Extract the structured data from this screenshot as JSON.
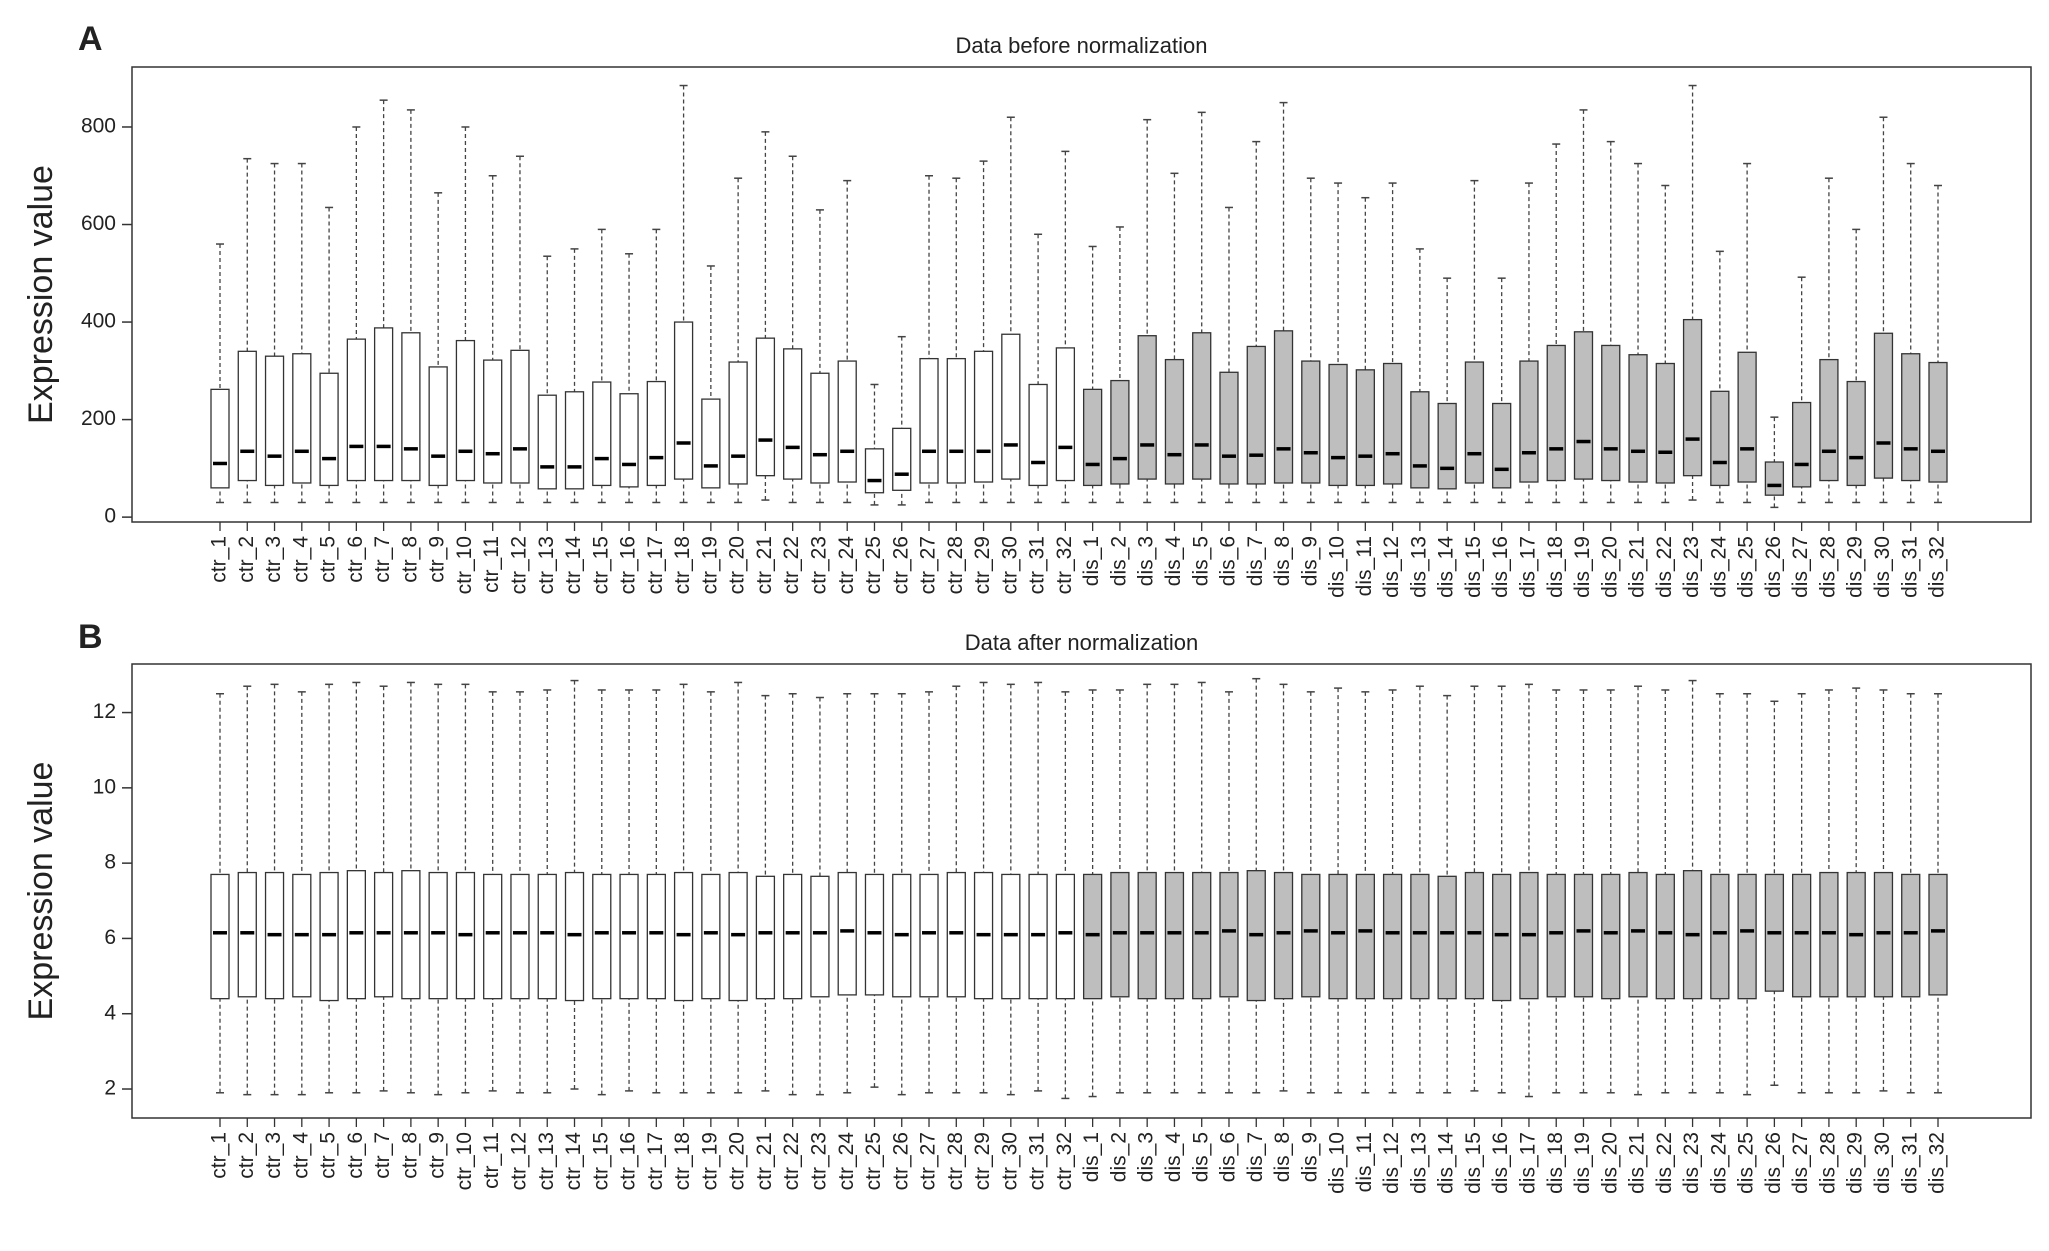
{
  "chart_data": [
    {
      "type": "box",
      "panel_label": "A",
      "title": "Data before normalization",
      "y_label": "Expression value",
      "ylim": [
        -10,
        923
      ],
      "yticks": [
        0,
        200,
        400,
        600,
        800
      ],
      "categories": [
        "ctr_1",
        "ctr_2",
        "ctr_3",
        "ctr_4",
        "ctr_5",
        "ctr_6",
        "ctr_7",
        "ctr_8",
        "ctr_9",
        "ctr_10",
        "ctr_11",
        "ctr_12",
        "ctr_13",
        "ctr_14",
        "ctr_15",
        "ctr_16",
        "ctr_17",
        "ctr_18",
        "ctr_19",
        "ctr_20",
        "ctr_21",
        "ctr_22",
        "ctr_23",
        "ctr_24",
        "ctr_25",
        "ctr_26",
        "ctr_27",
        "ctr_28",
        "ctr_29",
        "ctr_30",
        "ctr_31",
        "ctr_32",
        "dis_1",
        "dis_2",
        "dis_3",
        "dis_4",
        "dis_5",
        "dis_6",
        "dis_7",
        "dis_8",
        "dis_9",
        "dis_10",
        "dis_11",
        "dis_12",
        "dis_13",
        "dis_14",
        "dis_15",
        "dis_16",
        "dis_17",
        "dis_18",
        "dis_19",
        "dis_20",
        "dis_21",
        "dis_22",
        "dis_23",
        "dis_24",
        "dis_25",
        "dis_26",
        "dis_27",
        "dis_28",
        "dis_29",
        "dis_30",
        "dis_31",
        "dis_32"
      ],
      "box_colors": [
        "#ffffff",
        "#ffffff",
        "#ffffff",
        "#ffffff",
        "#ffffff",
        "#ffffff",
        "#ffffff",
        "#ffffff",
        "#ffffff",
        "#ffffff",
        "#ffffff",
        "#ffffff",
        "#ffffff",
        "#ffffff",
        "#ffffff",
        "#ffffff",
        "#ffffff",
        "#ffffff",
        "#ffffff",
        "#ffffff",
        "#ffffff",
        "#ffffff",
        "#ffffff",
        "#ffffff",
        "#ffffff",
        "#ffffff",
        "#ffffff",
        "#ffffff",
        "#ffffff",
        "#ffffff",
        "#ffffff",
        "#ffffff",
        "#bebebe",
        "#bebebe",
        "#bebebe",
        "#bebebe",
        "#bebebe",
        "#bebebe",
        "#bebebe",
        "#bebebe",
        "#bebebe",
        "#bebebe",
        "#bebebe",
        "#bebebe",
        "#bebebe",
        "#bebebe",
        "#bebebe",
        "#bebebe",
        "#bebebe",
        "#bebebe",
        "#bebebe",
        "#bebebe",
        "#bebebe",
        "#bebebe",
        "#bebebe",
        "#bebebe",
        "#bebebe",
        "#bebebe",
        "#bebebe",
        "#bebebe",
        "#bebebe",
        "#bebebe",
        "#bebebe",
        "#bebebe"
      ],
      "low": [
        30,
        30,
        30,
        30,
        30,
        30,
        30,
        30,
        30,
        30,
        30,
        30,
        30,
        30,
        30,
        30,
        30,
        30,
        30,
        30,
        35,
        30,
        30,
        30,
        25,
        25,
        30,
        30,
        30,
        30,
        30,
        30,
        30,
        30,
        30,
        30,
        30,
        30,
        30,
        30,
        30,
        30,
        30,
        30,
        30,
        30,
        30,
        30,
        30,
        30,
        30,
        30,
        30,
        30,
        35,
        30,
        30,
        20,
        30,
        30,
        30,
        30,
        30,
        30
      ],
      "q1": [
        60,
        75,
        65,
        70,
        65,
        75,
        75,
        75,
        65,
        75,
        70,
        70,
        58,
        58,
        65,
        62,
        65,
        78,
        60,
        68,
        85,
        78,
        70,
        72,
        50,
        55,
        70,
        70,
        72,
        78,
        65,
        75,
        65,
        68,
        78,
        68,
        78,
        68,
        68,
        70,
        70,
        65,
        65,
        68,
        60,
        58,
        70,
        60,
        72,
        75,
        78,
        75,
        72,
        70,
        85,
        65,
        72,
        45,
        62,
        75,
        65,
        80,
        75,
        72
      ],
      "median": [
        110,
        135,
        125,
        135,
        120,
        145,
        145,
        140,
        125,
        135,
        130,
        140,
        103,
        103,
        120,
        108,
        122,
        152,
        105,
        125,
        158,
        143,
        128,
        135,
        75,
        88,
        135,
        135,
        135,
        148,
        112,
        143,
        108,
        120,
        148,
        128,
        148,
        125,
        127,
        140,
        132,
        122,
        125,
        130,
        105,
        100,
        130,
        98,
        132,
        140,
        155,
        140,
        135,
        133,
        160,
        112,
        140,
        65,
        108,
        135,
        122,
        152,
        140,
        135
      ],
      "q3": [
        262,
        340,
        330,
        335,
        295,
        365,
        388,
        378,
        308,
        362,
        322,
        342,
        250,
        257,
        277,
        253,
        278,
        400,
        242,
        318,
        367,
        345,
        295,
        320,
        140,
        182,
        325,
        325,
        340,
        375,
        272,
        347,
        262,
        280,
        372,
        323,
        378,
        297,
        350,
        382,
        320,
        313,
        302,
        315,
        257,
        233,
        318,
        233,
        320,
        352,
        380,
        352,
        333,
        315,
        405,
        258,
        338,
        113,
        235,
        323,
        278,
        377,
        335,
        317
      ],
      "high": [
        560,
        735,
        725,
        725,
        635,
        800,
        855,
        835,
        665,
        800,
        700,
        740,
        535,
        550,
        590,
        540,
        590,
        885,
        515,
        695,
        790,
        740,
        630,
        690,
        272,
        370,
        700,
        695,
        730,
        820,
        580,
        750,
        555,
        595,
        815,
        705,
        830,
        635,
        770,
        850,
        695,
        685,
        655,
        685,
        550,
        490,
        690,
        490,
        685,
        765,
        835,
        770,
        725,
        680,
        885,
        545,
        725,
        205,
        492,
        695,
        590,
        820,
        725,
        680
      ]
    },
    {
      "type": "box",
      "panel_label": "B",
      "title": "Data after normalization",
      "y_label": "Expression value",
      "ylim": [
        1.23,
        13.29
      ],
      "yticks": [
        2,
        4,
        6,
        8,
        10,
        12
      ],
      "categories": [
        "ctr_1",
        "ctr_2",
        "ctr_3",
        "ctr_4",
        "ctr_5",
        "ctr_6",
        "ctr_7",
        "ctr_8",
        "ctr_9",
        "ctr_10",
        "ctr_11",
        "ctr_12",
        "ctr_13",
        "ctr_14",
        "ctr_15",
        "ctr_16",
        "ctr_17",
        "ctr_18",
        "ctr_19",
        "ctr_20",
        "ctr_21",
        "ctr_22",
        "ctr_23",
        "ctr_24",
        "ctr_25",
        "ctr_26",
        "ctr_27",
        "ctr_28",
        "ctr_29",
        "ctr_30",
        "ctr_31",
        "ctr_32",
        "dis_1",
        "dis_2",
        "dis_3",
        "dis_4",
        "dis_5",
        "dis_6",
        "dis_7",
        "dis_8",
        "dis_9",
        "dis_10",
        "dis_11",
        "dis_12",
        "dis_13",
        "dis_14",
        "dis_15",
        "dis_16",
        "dis_17",
        "dis_18",
        "dis_19",
        "dis_20",
        "dis_21",
        "dis_22",
        "dis_23",
        "dis_24",
        "dis_25",
        "dis_26",
        "dis_27",
        "dis_28",
        "dis_29",
        "dis_30",
        "dis_31",
        "dis_32"
      ],
      "box_colors": [
        "#ffffff",
        "#ffffff",
        "#ffffff",
        "#ffffff",
        "#ffffff",
        "#ffffff",
        "#ffffff",
        "#ffffff",
        "#ffffff",
        "#ffffff",
        "#ffffff",
        "#ffffff",
        "#ffffff",
        "#ffffff",
        "#ffffff",
        "#ffffff",
        "#ffffff",
        "#ffffff",
        "#ffffff",
        "#ffffff",
        "#ffffff",
        "#ffffff",
        "#ffffff",
        "#ffffff",
        "#ffffff",
        "#ffffff",
        "#ffffff",
        "#ffffff",
        "#ffffff",
        "#ffffff",
        "#ffffff",
        "#ffffff",
        "#bebebe",
        "#bebebe",
        "#bebebe",
        "#bebebe",
        "#bebebe",
        "#bebebe",
        "#bebebe",
        "#bebebe",
        "#bebebe",
        "#bebebe",
        "#bebebe",
        "#bebebe",
        "#bebebe",
        "#bebebe",
        "#bebebe",
        "#bebebe",
        "#bebebe",
        "#bebebe",
        "#bebebe",
        "#bebebe",
        "#bebebe",
        "#bebebe",
        "#bebebe",
        "#bebebe",
        "#bebebe",
        "#bebebe",
        "#bebebe",
        "#bebebe",
        "#bebebe",
        "#bebebe",
        "#bebebe",
        "#bebebe"
      ],
      "low": [
        1.9,
        1.85,
        1.85,
        1.85,
        1.9,
        1.9,
        1.95,
        1.9,
        1.85,
        1.9,
        1.95,
        1.9,
        1.9,
        2.0,
        1.85,
        1.95,
        1.9,
        1.9,
        1.9,
        1.9,
        1.95,
        1.85,
        1.85,
        1.9,
        2.05,
        1.85,
        1.9,
        1.9,
        1.9,
        1.85,
        1.95,
        1.75,
        1.8,
        1.9,
        1.9,
        1.9,
        1.9,
        1.9,
        1.9,
        1.95,
        1.9,
        1.9,
        1.9,
        1.9,
        1.9,
        1.9,
        1.95,
        1.9,
        1.8,
        1.9,
        1.9,
        1.9,
        1.85,
        1.9,
        1.9,
        1.9,
        1.85,
        2.1,
        1.9,
        1.9,
        1.9,
        1.95,
        1.9,
        1.9
      ],
      "q1": [
        4.4,
        4.45,
        4.4,
        4.45,
        4.35,
        4.4,
        4.45,
        4.4,
        4.4,
        4.4,
        4.4,
        4.4,
        4.4,
        4.35,
        4.4,
        4.4,
        4.4,
        4.35,
        4.4,
        4.35,
        4.4,
        4.4,
        4.45,
        4.5,
        4.5,
        4.45,
        4.45,
        4.45,
        4.4,
        4.4,
        4.4,
        4.4,
        4.4,
        4.45,
        4.4,
        4.4,
        4.4,
        4.45,
        4.35,
        4.4,
        4.45,
        4.4,
        4.4,
        4.4,
        4.4,
        4.4,
        4.4,
        4.35,
        4.4,
        4.45,
        4.45,
        4.4,
        4.45,
        4.4,
        4.4,
        4.4,
        4.4,
        4.6,
        4.45,
        4.45,
        4.45,
        4.45,
        4.45,
        4.5
      ],
      "median": [
        6.15,
        6.15,
        6.1,
        6.1,
        6.1,
        6.15,
        6.15,
        6.15,
        6.15,
        6.1,
        6.15,
        6.15,
        6.15,
        6.1,
        6.15,
        6.15,
        6.15,
        6.1,
        6.15,
        6.1,
        6.15,
        6.15,
        6.15,
        6.2,
        6.15,
        6.1,
        6.15,
        6.15,
        6.1,
        6.1,
        6.1,
        6.15,
        6.1,
        6.15,
        6.15,
        6.15,
        6.15,
        6.2,
        6.1,
        6.15,
        6.2,
        6.15,
        6.2,
        6.15,
        6.15,
        6.15,
        6.15,
        6.1,
        6.1,
        6.15,
        6.2,
        6.15,
        6.2,
        6.15,
        6.1,
        6.15,
        6.2,
        6.15,
        6.15,
        6.15,
        6.1,
        6.15,
        6.15,
        6.2
      ],
      "q3": [
        7.7,
        7.75,
        7.75,
        7.7,
        7.75,
        7.8,
        7.75,
        7.8,
        7.75,
        7.75,
        7.7,
        7.7,
        7.7,
        7.75,
        7.7,
        7.7,
        7.7,
        7.75,
        7.7,
        7.75,
        7.65,
        7.7,
        7.65,
        7.75,
        7.7,
        7.7,
        7.7,
        7.75,
        7.75,
        7.7,
        7.7,
        7.7,
        7.7,
        7.75,
        7.75,
        7.75,
        7.75,
        7.75,
        7.8,
        7.75,
        7.7,
        7.7,
        7.7,
        7.7,
        7.7,
        7.65,
        7.75,
        7.7,
        7.75,
        7.7,
        7.7,
        7.7,
        7.75,
        7.7,
        7.8,
        7.7,
        7.7,
        7.7,
        7.7,
        7.75,
        7.75,
        7.75,
        7.7,
        7.7
      ],
      "high": [
        12.5,
        12.7,
        12.75,
        12.55,
        12.75,
        12.8,
        12.7,
        12.8,
        12.75,
        12.75,
        12.55,
        12.55,
        12.6,
        12.85,
        12.6,
        12.6,
        12.6,
        12.75,
        12.55,
        12.8,
        12.45,
        12.5,
        12.4,
        12.5,
        12.5,
        12.5,
        12.55,
        12.7,
        12.8,
        12.75,
        12.8,
        12.55,
        12.6,
        12.6,
        12.75,
        12.75,
        12.8,
        12.55,
        12.9,
        12.75,
        12.55,
        12.65,
        12.55,
        12.6,
        12.7,
        12.45,
        12.7,
        12.7,
        12.75,
        12.6,
        12.6,
        12.6,
        12.7,
        12.6,
        12.85,
        12.5,
        12.5,
        12.3,
        12.5,
        12.6,
        12.65,
        12.6,
        12.5,
        12.5
      ]
    }
  ]
}
